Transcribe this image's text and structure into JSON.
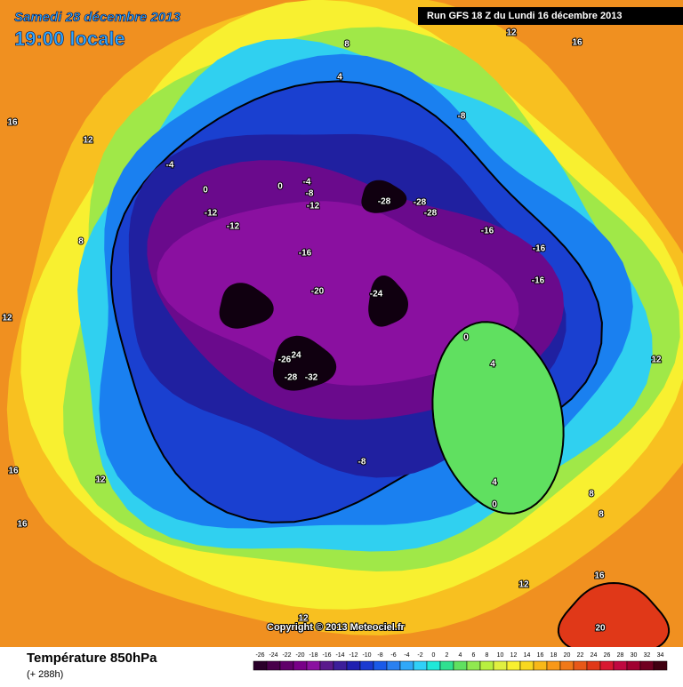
{
  "header": {
    "title": "Samedi 28 décembre 2013",
    "time": "19:00 locale",
    "run": "Run GFS 18 Z du Lundi 16 décembre 2013"
  },
  "copyright": "Copyright © 2013 Meteociel.fr",
  "footer": {
    "title": "Température 850hPa",
    "subtitle": "(+ 288h)"
  },
  "legend": {
    "labels": [
      -26,
      -24,
      -22,
      -20,
      -18,
      -16,
      -14,
      -12,
      -10,
      -8,
      -6,
      -4,
      -2,
      0,
      2,
      4,
      6,
      8,
      10,
      12,
      14,
      16,
      18,
      20,
      22,
      24,
      26,
      28,
      30,
      32,
      34
    ],
    "colors": [
      "#2a002a",
      "#48004a",
      "#60006a",
      "#780088",
      "#8a10a0",
      "#5a1a8c",
      "#3c1e9a",
      "#2020b0",
      "#1a3ad0",
      "#1a5ae8",
      "#2a80f0",
      "#30a8f8",
      "#30d0f8",
      "#20e8d8",
      "#30e090",
      "#60e060",
      "#90e850",
      "#b8f040",
      "#e0f040",
      "#f8f030",
      "#f8d820",
      "#f8b818",
      "#f89818",
      "#f07818",
      "#e85818",
      "#e03818",
      "#d81830",
      "#c00840",
      "#a00030",
      "#700020",
      "#400010"
    ]
  },
  "contour_labels": [
    -28,
    -28,
    -28,
    -16,
    -16,
    -16,
    -24,
    -20,
    -16,
    -12,
    -8,
    -4,
    -12,
    -12,
    -4,
    -8,
    0,
    4,
    -26,
    24,
    -28,
    -32,
    -8,
    4,
    0,
    8,
    8,
    12,
    16,
    20,
    12,
    12,
    8,
    12,
    16,
    16,
    16,
    12,
    8,
    4,
    12,
    16,
    12,
    0,
    0
  ]
}
